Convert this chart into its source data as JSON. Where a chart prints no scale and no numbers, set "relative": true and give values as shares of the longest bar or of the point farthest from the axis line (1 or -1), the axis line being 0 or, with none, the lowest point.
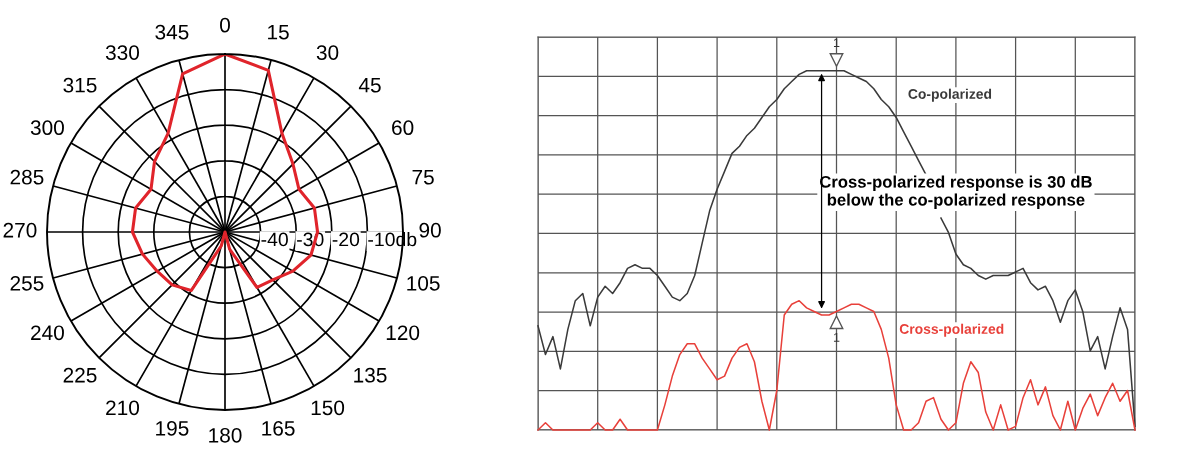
{
  "chart_data": [
    {
      "type": "radar",
      "categories": [
        "0",
        "15",
        "30",
        "45",
        "60",
        "75",
        "90",
        "105",
        "120",
        "135",
        "150",
        "165",
        "180",
        "195",
        "210",
        "225",
        "240",
        "255",
        "270",
        "285",
        "300",
        "315",
        "330",
        "345"
      ],
      "series": [
        {
          "color": "#e0242b",
          "values": [
            0,
            -3,
            -18,
            -23,
            -26,
            -24,
            -24,
            -25,
            -28,
            -31,
            -32,
            -45,
            -50,
            -46,
            -31,
            -29,
            -28,
            -26,
            -24,
            -24,
            -26,
            -22,
            -18,
            -4
          ]
        }
      ],
      "ylim": [
        -50,
        0
      ],
      "yticks": [
        {
          "value": -40,
          "label": "-40"
        },
        {
          "value": -30,
          "label": "-30"
        },
        {
          "value": -20,
          "label": "-20"
        },
        {
          "value": -10,
          "label": "-10db"
        }
      ],
      "grid": true
    },
    {
      "type": "line",
      "relative": true,
      "grid": true,
      "categories": [
        null,
        null,
        null,
        null,
        null,
        null,
        null,
        null,
        null,
        null,
        null,
        null,
        null,
        null,
        null,
        null,
        null,
        null,
        null,
        null,
        null,
        null,
        null,
        null,
        null,
        null,
        null,
        null,
        null,
        null,
        null,
        null,
        null,
        null,
        null,
        null,
        null,
        null,
        null,
        null,
        null,
        null,
        null,
        null,
        null,
        null,
        null,
        null,
        null,
        null,
        null,
        null,
        null,
        null,
        null,
        null,
        null,
        null,
        null,
        null,
        null,
        null,
        null,
        null,
        null,
        null,
        null,
        null,
        null,
        null,
        null,
        null,
        null,
        null,
        null,
        null,
        null,
        null,
        null,
        null,
        null
      ],
      "series": [
        {
          "name": "Co-polarized",
          "color": "#3a3a3a",
          "values": [
            0.29,
            0.21,
            0.26,
            0.17,
            0.28,
            0.36,
            0.38,
            0.29,
            0.37,
            0.4,
            0.38,
            0.41,
            0.45,
            0.46,
            0.45,
            0.45,
            0.43,
            0.4,
            0.37,
            0.36,
            0.38,
            0.43,
            0.52,
            0.61,
            0.67,
            0.72,
            0.77,
            0.79,
            0.82,
            0.84,
            0.87,
            0.9,
            0.92,
            0.95,
            0.97,
            0.99,
            1,
            1,
            1,
            1,
            1,
            1,
            0.99,
            0.98,
            0.97,
            0.95,
            0.92,
            0.9,
            0.87,
            0.83,
            0.79,
            0.75,
            0.71,
            null,
            0.59,
            0.55,
            0.49,
            0.46,
            0.45,
            0.43,
            0.42,
            0.43,
            0.43,
            0.43,
            0.44,
            0.45,
            0.41,
            0.39,
            0.4,
            0.36,
            0.3,
            0.36,
            0.39,
            0.33,
            0.22,
            0.26,
            0.17,
            0.26,
            0.34,
            0.28,
            0.01
          ]
        },
        {
          "name": "Cross-polarized",
          "color": "#e8403a",
          "values": [
            0,
            0.02,
            0,
            0,
            0,
            0,
            0,
            0,
            0.02,
            0,
            0,
            0.03,
            0,
            0,
            0,
            0,
            0,
            0.07,
            0.15,
            0.21,
            0.24,
            0.24,
            0.2,
            0.17,
            0.14,
            0.15,
            0.2,
            0.23,
            0.24,
            0.19,
            0.08,
            0,
            0.11,
            0.32,
            0.35,
            0.36,
            0.34,
            0.33,
            0.32,
            0.32,
            0.33,
            0.34,
            0.35,
            0.35,
            0.34,
            0.33,
            0.28,
            0.2,
            0.07,
            0,
            0,
            0.02,
            0.08,
            0.09,
            0.03,
            0,
            0.02,
            0.13,
            0.19,
            0.16,
            0.05,
            0,
            0.07,
            0,
            0.01,
            0.09,
            0.14,
            0.07,
            0.12,
            0.04,
            0,
            0.08,
            0,
            0.06,
            0.1,
            0.04,
            0.09,
            0.13,
            0.08,
            0.11,
            0
          ]
        }
      ],
      "annotations": [
        "Cross-polarized response is 30 dB\nbelow the co-polarized response",
        {
          "text": "1",
          "y": 1
        },
        {
          "text": "1",
          "y": 0.33
        }
      ]
    }
  ]
}
